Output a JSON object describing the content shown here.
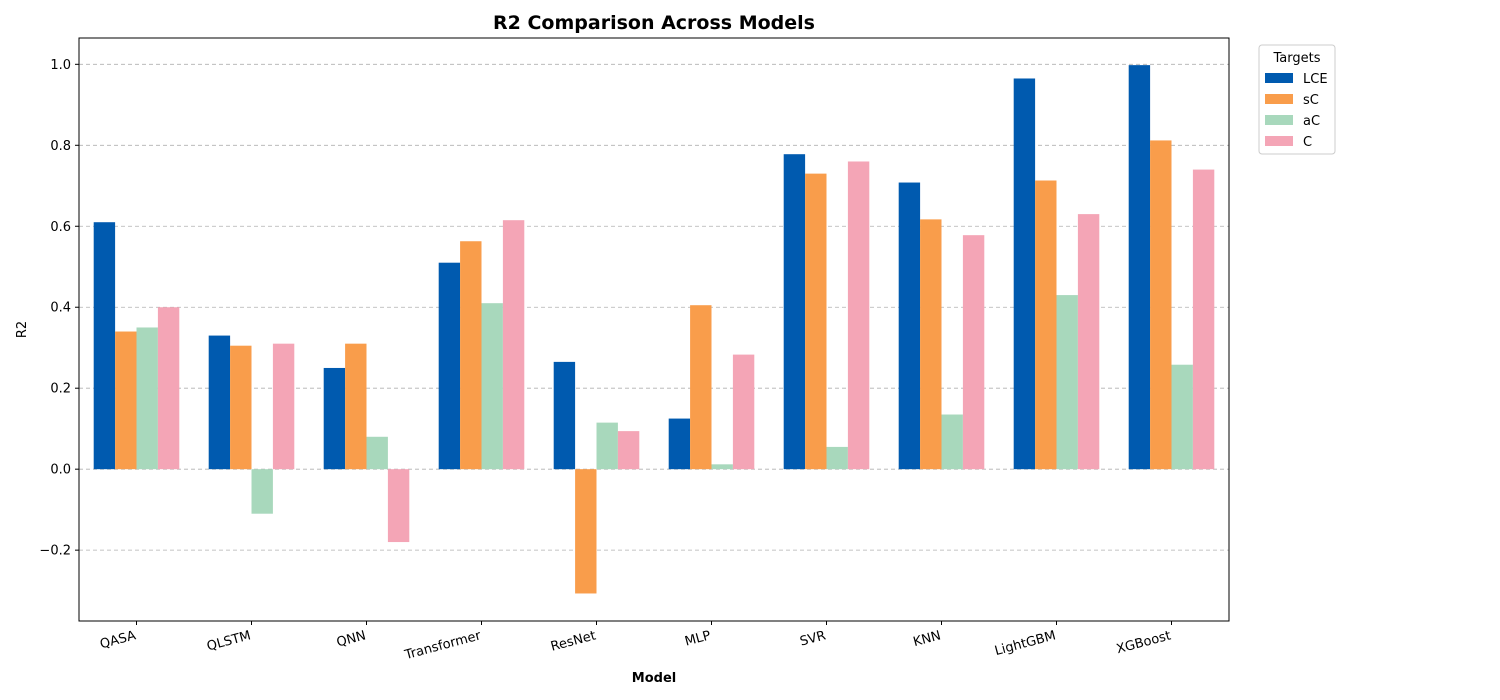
{
  "chart_data": {
    "type": "bar",
    "title": "R2 Comparison Across Models",
    "xlabel": "Model",
    "ylabel": "R2",
    "categories": [
      "QASA",
      "QLSTM",
      "QNN",
      "Transformer",
      "ResNet",
      "MLP",
      "SVR",
      "KNN",
      "LightGBM",
      "XGBoost"
    ],
    "series": [
      {
        "name": "LCE",
        "color": "#005aaf",
        "values": [
          0.61,
          0.33,
          0.25,
          0.51,
          0.265,
          0.125,
          0.778,
          0.708,
          0.965,
          0.998
        ]
      },
      {
        "name": "sC",
        "color": "#f99d4b",
        "values": [
          0.34,
          0.305,
          0.31,
          0.563,
          -0.307,
          0.405,
          0.73,
          0.617,
          0.713,
          0.812
        ]
      },
      {
        "name": "aC",
        "color": "#a8d8bc",
        "values": [
          0.35,
          -0.11,
          0.08,
          0.41,
          0.115,
          0.012,
          0.055,
          0.135,
          0.43,
          0.258
        ]
      },
      {
        "name": "C",
        "color": "#f4a5b6",
        "values": [
          0.4,
          0.31,
          -0.18,
          0.615,
          0.094,
          0.283,
          0.76,
          0.578,
          0.63,
          0.74
        ]
      }
    ],
    "ylim": [
      -0.375,
      1.065
    ],
    "yticks": [
      -0.2,
      0.0,
      0.2,
      0.4,
      0.6,
      0.8,
      1.0
    ],
    "ytick_labels": [
      "−0.2",
      "0.0",
      "0.2",
      "0.4",
      "0.6",
      "0.8",
      "1.0"
    ],
    "grid": "y, dashed",
    "legend": {
      "title": "Targets",
      "placement": "outside upper right"
    }
  }
}
